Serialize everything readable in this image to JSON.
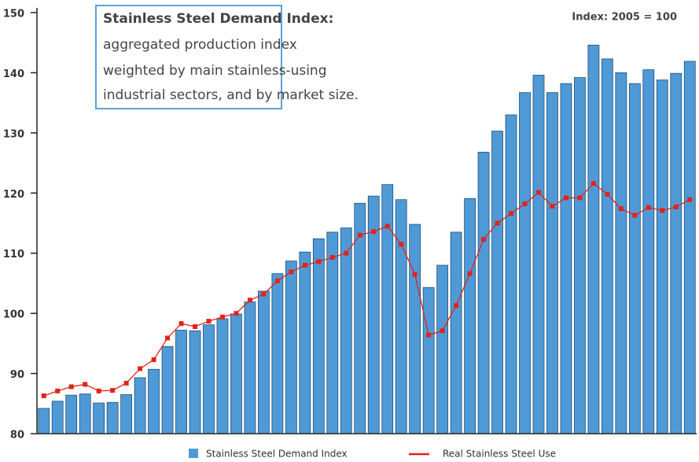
{
  "chart_data": {
    "type": "bar_line",
    "annotation": {
      "title": "Stainless Steel Demand Index:",
      "lines": [
        "aggregated production index",
        "weighted by main stainless-using",
        "industrial sectors, and by market size."
      ]
    },
    "note": "Index: 2005 = 100",
    "series": [
      {
        "name": "Stainless Steel Demand Index",
        "type": "bar",
        "color": "#4f9ad6",
        "values": [
          84.2,
          85.4,
          86.4,
          86.6,
          85.1,
          85.2,
          86.5,
          89.3,
          90.7,
          94.5,
          97.2,
          97.1,
          98.1,
          99.1,
          99.9,
          101.9,
          103.7,
          106.6,
          108.7,
          110.2,
          112.4,
          113.5,
          114.2,
          118.3,
          119.5,
          121.4,
          118.9,
          114.8,
          104.3,
          108.0,
          113.5,
          119.1,
          126.8,
          130.3,
          133.0,
          136.7,
          139.6,
          136.7,
          138.2,
          139.2,
          144.6,
          142.3,
          140.0,
          138.2,
          140.5,
          138.8,
          139.9,
          141.9
        ]
      },
      {
        "name": "Real Stainless Steel Use",
        "type": "line",
        "color": "#e2231a",
        "values": [
          86.3,
          87.1,
          87.8,
          88.2,
          87.1,
          87.2,
          88.4,
          90.8,
          92.3,
          95.9,
          98.3,
          97.8,
          98.7,
          99.4,
          100.0,
          102.2,
          103.2,
          105.4,
          106.9,
          108.0,
          108.6,
          109.3,
          110.0,
          113.0,
          113.6,
          114.5,
          111.5,
          106.5,
          96.4,
          97.1,
          101.3,
          106.6,
          112.3,
          115.0,
          116.6,
          118.2,
          120.1,
          117.8,
          119.2,
          119.2,
          121.6,
          119.8,
          117.4,
          116.3,
          117.6,
          117.1,
          117.7,
          118.9
        ]
      }
    ],
    "ylim": [
      80,
      150
    ],
    "yticks": [
      80,
      90,
      100,
      110,
      120,
      130,
      140,
      150
    ],
    "grid": false
  }
}
